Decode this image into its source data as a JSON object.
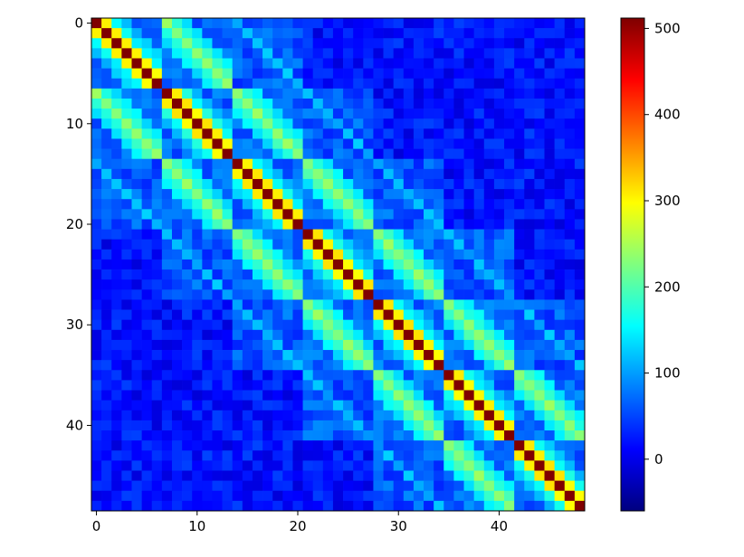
{
  "chart_data": {
    "type": "heatmap",
    "title": "",
    "xlabel": "",
    "ylabel": "",
    "matrix_size": 49,
    "block_size": 7,
    "x_ticks": [
      0,
      10,
      20,
      30,
      40
    ],
    "y_ticks": [
      0,
      10,
      20,
      30,
      40
    ],
    "colormap": "jet",
    "colorbar": {
      "range": [
        -60,
        512
      ],
      "ticks": [
        0,
        100,
        200,
        300,
        400,
        500
      ],
      "colors": [
        "#00007f",
        "#0000ff",
        "#007fff",
        "#00ffff",
        "#7fff7f",
        "#ffff00",
        "#ff7f00",
        "#ff0000",
        "#7f0000"
      ]
    },
    "value_structure": {
      "diagonal": 512,
      "within_block_neighbor": 305,
      "within_block_distance_2": 160,
      "within_block_distance_3": 120,
      "adjacent_block_same_position": 235,
      "adjacent_block_position_neighbor": 185,
      "adjacent_block_position_distance_2": 145,
      "background_near": 70,
      "background_far": 20
    }
  }
}
